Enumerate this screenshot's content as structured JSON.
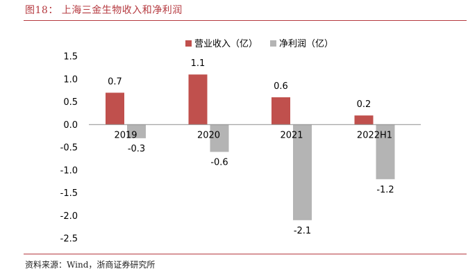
{
  "figure": {
    "title": "图18： 上海三金生物收入和净利润",
    "source": "资料来源：Wind，浙商证券研究所"
  },
  "colors": {
    "revenue": "#c0504d",
    "net_profit": "#b4b4b4"
  },
  "chart_data": {
    "type": "bar",
    "categories": [
      "2019",
      "2020",
      "2021",
      "2022H1"
    ],
    "series": [
      {
        "name": "营业收入（亿）",
        "values": [
          0.7,
          1.1,
          0.6,
          0.2
        ],
        "labels": [
          "0.7",
          "1.1",
          "0.6",
          "0.2"
        ]
      },
      {
        "name": "净利润（亿）",
        "values": [
          -0.3,
          -0.6,
          -2.1,
          -1.2
        ],
        "labels": [
          "-0.3",
          "-0.6",
          "-2.1",
          "-1.2"
        ]
      }
    ],
    "yticks": [
      "1.5",
      "1.0",
      "0.5",
      "0.0",
      "-0.5",
      "-1.0",
      "-1.5",
      "-2.0",
      "-2.5"
    ],
    "ylim": [
      -2.5,
      1.5
    ],
    "legend": "top",
    "grid": false
  }
}
